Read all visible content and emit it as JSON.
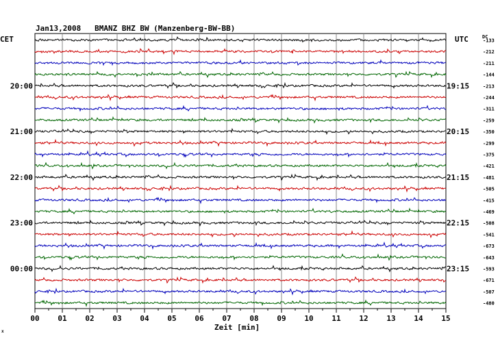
{
  "title": "Jan13,2008   BMANZ BHZ BW (Manzenberg-BW-BB)",
  "left_zone_label": "CET",
  "right_zone_label": "UTC",
  "dc_label": "DC",
  "footnote": "x",
  "chart_data": {
    "type": "line",
    "title": "Jan13,2008   BMANZ BHZ BW (Manzenberg-BW-BB)",
    "xlabel": "Zeit [min]",
    "ylabel": "",
    "xlim": [
      0,
      15
    ],
    "x_ticks": [
      "00",
      "01",
      "02",
      "03",
      "04",
      "05",
      "06",
      "07",
      "08",
      "09",
      "10",
      "11",
      "12",
      "13",
      "14",
      "15"
    ],
    "grid": true,
    "trace_colors": [
      "#000000",
      "#cc0000",
      "#0000bb",
      "#006600"
    ],
    "left_time_labels": [
      "20:00",
      "21:00",
      "22:00",
      "23:00",
      "00:00"
    ],
    "right_time_labels": [
      "19:15",
      "20:15",
      "21:15",
      "22:15",
      "23:15"
    ],
    "time_label_rows": [
      4,
      8,
      12,
      16,
      20
    ],
    "dc_offsets": [
      -133,
      -212,
      -211,
      -144,
      -213,
      -244,
      -311,
      -259,
      -350,
      -299,
      -375,
      -421,
      -481,
      -505,
      -415,
      -469,
      -508,
      -541,
      -673,
      -643,
      -593,
      -671,
      -507,
      -480
    ],
    "trace_count": 24
  }
}
